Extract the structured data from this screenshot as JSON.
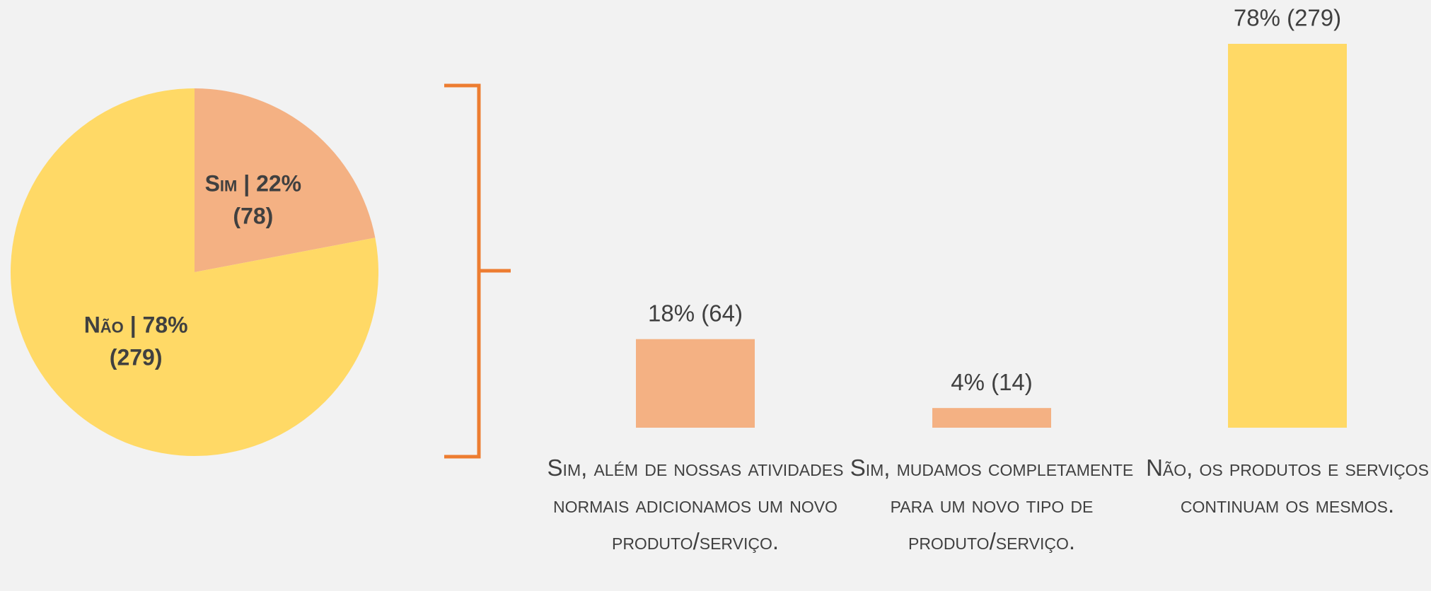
{
  "chart_data": [
    {
      "type": "pie",
      "categories": [
        "Sim",
        "Não"
      ],
      "values": [
        22,
        78
      ],
      "value_labels": [
        [
          "Sim | 22%",
          "(78)"
        ],
        [
          "Não | 78%",
          "(279)"
        ]
      ],
      "colors": [
        "#F4B183",
        "#FFD966"
      ]
    },
    {
      "type": "bar",
      "categories": [
        "Sim, além de nossas atividades normais adicionamos um novo produto/serviço.",
        "Sim, mudamos completamente para um novo tipo de produto/serviço.",
        "Não, os produtos e serviços continuam os mesmos."
      ],
      "values": [
        18,
        4,
        78
      ],
      "value_labels": [
        "18% (64)",
        "4% (14)",
        "78% (279)"
      ],
      "colors": [
        "#F4B183",
        "#F4B183",
        "#FFD966"
      ]
    }
  ]
}
